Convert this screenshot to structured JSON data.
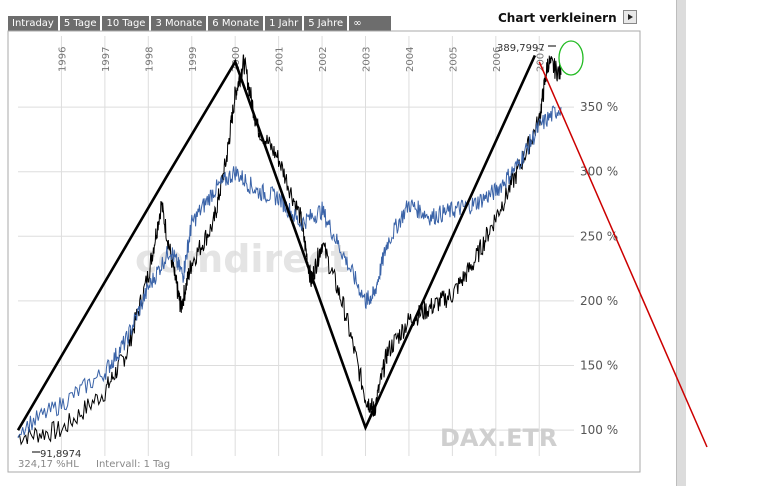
{
  "tabs": [
    {
      "label": "Intraday"
    },
    {
      "label": "5 Tage"
    },
    {
      "label": "10 Tage"
    },
    {
      "label": "3 Monate"
    },
    {
      "label": "6 Monate"
    },
    {
      "label": "1 Jahr"
    },
    {
      "label": "5 Jahre"
    },
    {
      "label": "∞"
    }
  ],
  "shrink_label": "Chart verkleinern",
  "watermark": "comdirect",
  "instrument": "DAX.ETR",
  "footer": {
    "left": "324,17 %HL",
    "interval": "Intervall: 1 Tag"
  },
  "min_label": "91,8974",
  "max_label": "389,7997",
  "colors": {
    "index_line": "#000000",
    "compare_line": "#3a63a8",
    "trend": "#000000",
    "forecast": "#cc0000",
    "highlight": "#22bb22"
  },
  "chart_data": {
    "type": "line",
    "x_ticks": [
      "1996",
      "1997",
      "1998",
      "1999",
      "2000",
      "2001",
      "2002",
      "2003",
      "2004",
      "2005",
      "2006",
      "2007"
    ],
    "y_ticks": [
      "100 %",
      "150 %",
      "200 %",
      "250 %",
      "300 %",
      "350 %"
    ],
    "ylim": [
      100,
      400
    ],
    "grid": true,
    "series": [
      {
        "x": [
          1995.0,
          1996.0,
          1997.0,
          1997.5,
          1998.0,
          1998.3,
          1998.6,
          1998.75,
          1999.0,
          1999.5,
          1999.8,
          2000.0,
          2000.2,
          2000.5,
          2001.0,
          2001.5,
          2001.75,
          2002.0,
          2002.5,
          2003.0,
          2003.2,
          2003.5,
          2004.0,
          2004.5,
          2005.0,
          2005.5,
          2006.0,
          2006.5,
          2007.0,
          2007.2,
          2007.5
        ],
        "y": [
          95,
          100,
          130,
          160,
          220,
          275,
          220,
          195,
          230,
          260,
          310,
          360,
          385,
          335,
          310,
          265,
          215,
          245,
          195,
          125,
          115,
          160,
          185,
          195,
          205,
          230,
          265,
          300,
          340,
          385,
          375
        ]
      },
      {
        "x": [
          1995.0,
          1996.0,
          1997.0,
          1997.5,
          1998.0,
          1998.5,
          1998.8,
          1999.0,
          1999.5,
          2000.0,
          2000.5,
          2001.0,
          2001.5,
          2002.0,
          2002.5,
          2003.0,
          2003.2,
          2003.5,
          2004.0,
          2004.5,
          2005.0,
          2005.5,
          2006.0,
          2006.5,
          2007.0,
          2007.5
        ],
        "y": [
          100,
          120,
          145,
          170,
          210,
          240,
          220,
          260,
          285,
          300,
          285,
          280,
          260,
          270,
          235,
          200,
          205,
          245,
          275,
          265,
          270,
          275,
          285,
          305,
          335,
          350
        ]
      }
    ],
    "trend_lines": [
      {
        "x": [
          1995.0,
          1998.4,
          2000.0,
          2003.0,
          2006.9
        ],
        "y": [
          100,
          295,
          385,
          102,
          390
        ]
      }
    ],
    "forecast_line": {
      "x": [
        2007.0,
        2010.5
      ],
      "y": [
        385,
        100
      ]
    }
  }
}
